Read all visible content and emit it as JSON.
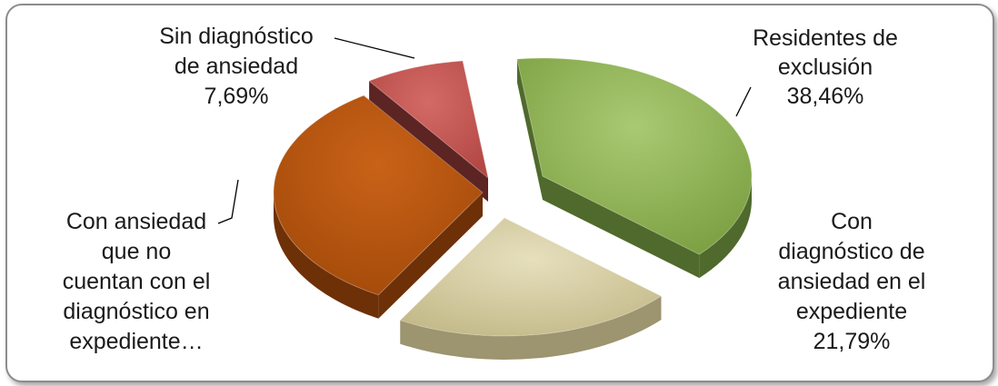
{
  "chart_data": {
    "type": "pie",
    "style": "3d-exploded",
    "title": "",
    "slices": [
      {
        "label_lines": [
          "Residentes de",
          "exclusión"
        ],
        "value_label": "38,46%",
        "value": 38.46,
        "color": "#8db255",
        "side_color": "#4f6a2c"
      },
      {
        "label_lines": [
          "Con",
          "diagnóstico de",
          "ansiedad en el",
          "expediente"
        ],
        "value_label": "21,79%",
        "value": 21.79,
        "color": "#cfc69a",
        "side_color": "#9d9470"
      },
      {
        "label_lines": [
          "Con ansiedad",
          "que no",
          "cuentan con el",
          "diagnóstico en",
          "expediente…"
        ],
        "value_label": "",
        "value": 32.06,
        "color": "#b4530c",
        "side_color": "#6e3007"
      },
      {
        "label_lines": [
          "Sin diagnóstico",
          "de ansiedad"
        ],
        "value_label": "7,69%",
        "value": 7.69,
        "color": "#c0504d",
        "side_color": "#5c2422"
      }
    ]
  }
}
